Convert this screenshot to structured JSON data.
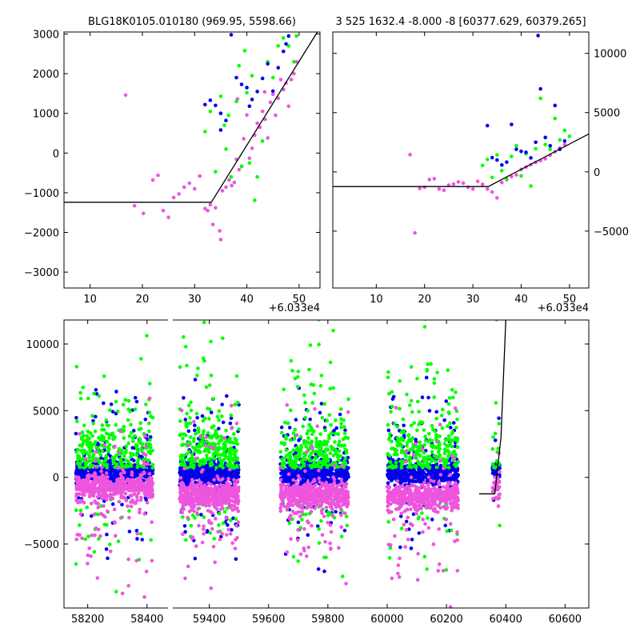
{
  "colors": {
    "green": "#00ff00",
    "blue": "#0000ee",
    "pink": "#ee55dd",
    "model": "#000000"
  },
  "chart_data": [
    {
      "id": "panel-top-left",
      "type": "scatter",
      "title": "BLG18K0105.010180 (969.95, 5598.66)",
      "x_offset_label": "+6.033e4",
      "xlim": [
        5,
        54
      ],
      "ylim": [
        -3400,
        3050
      ],
      "xticks": [
        10,
        20,
        30,
        40,
        50
      ],
      "yticks": [
        -3000,
        -2000,
        -1000,
        0,
        1000,
        2000,
        3000
      ],
      "ytick_side": "left",
      "model_line": [
        [
          5,
          -1240
        ],
        [
          33.2,
          -1240
        ],
        [
          53.5,
          3050
        ]
      ],
      "series": [
        {
          "color": "pink",
          "points": [
            [
              16.8,
              1460
            ],
            [
              18.5,
              -1330
            ],
            [
              20.2,
              -1520
            ],
            [
              22,
              -680
            ],
            [
              23,
              -560
            ],
            [
              24,
              -1450
            ],
            [
              25,
              -1620
            ],
            [
              26,
              -1120
            ],
            [
              27,
              -1030
            ],
            [
              28,
              -860
            ],
            [
              29,
              -760
            ],
            [
              30,
              -900
            ],
            [
              31,
              -580
            ],
            [
              32,
              -1400
            ],
            [
              32.5,
              -1450
            ],
            [
              33,
              -1300
            ],
            [
              33.5,
              -1800
            ],
            [
              34,
              -1380
            ],
            [
              34.8,
              -1960
            ],
            [
              35,
              -2180
            ],
            [
              35.3,
              -950
            ],
            [
              36,
              -860
            ],
            [
              36.6,
              -680
            ],
            [
              37.1,
              -820
            ],
            [
              37.6,
              -740
            ],
            [
              38,
              -160
            ],
            [
              38.5,
              -420
            ],
            [
              39,
              -330
            ],
            [
              39.4,
              360
            ],
            [
              40,
              960
            ],
            [
              40.5,
              -130
            ],
            [
              41,
              120
            ],
            [
              41.5,
              450
            ],
            [
              42,
              750
            ],
            [
              42.5,
              650
            ],
            [
              43,
              1050
            ],
            [
              43.5,
              850
            ],
            [
              44,
              380
            ],
            [
              44.5,
              1280
            ],
            [
              45,
              1480
            ],
            [
              45.5,
              950
            ],
            [
              46,
              1380
            ],
            [
              46.5,
              1850
            ],
            [
              47,
              1600
            ],
            [
              47.5,
              1760
            ],
            [
              48,
              1180
            ],
            [
              48.5,
              1850
            ],
            [
              49,
              2000
            ],
            [
              49.5,
              2300
            ],
            [
              43.4,
              1540
            ],
            [
              38.2,
              1360
            ]
          ]
        },
        {
          "color": "green",
          "points": [
            [
              32,
              540
            ],
            [
              33,
              1050
            ],
            [
              34,
              -470
            ],
            [
              35,
              1430
            ],
            [
              36,
              100
            ],
            [
              36.5,
              950
            ],
            [
              37,
              -600
            ],
            [
              38,
              1300
            ],
            [
              38.5,
              2200
            ],
            [
              39,
              -340
            ],
            [
              40,
              1520
            ],
            [
              40.5,
              -250
            ],
            [
              41,
              1950
            ],
            [
              41.5,
              -1190
            ],
            [
              42,
              -600
            ],
            [
              43,
              300
            ],
            [
              44,
              2300
            ],
            [
              45,
              1900
            ],
            [
              46,
              2700
            ],
            [
              47,
              2900
            ],
            [
              48,
              2700
            ],
            [
              49,
              2300
            ],
            [
              49.5,
              2950
            ],
            [
              39.6,
              2580
            ],
            [
              35.7,
              700
            ]
          ]
        },
        {
          "color": "blue",
          "points": [
            [
              32,
              1220
            ],
            [
              33,
              1330
            ],
            [
              34,
              1200
            ],
            [
              35,
              1000
            ],
            [
              35,
              580
            ],
            [
              36,
              820
            ],
            [
              37,
              2980
            ],
            [
              38,
              1900
            ],
            [
              39,
              1730
            ],
            [
              40,
              1650
            ],
            [
              40.5,
              1180
            ],
            [
              41,
              1350
            ],
            [
              42,
              1550
            ],
            [
              43,
              1880
            ],
            [
              44,
              2250
            ],
            [
              45,
              1560
            ],
            [
              46,
              2150
            ],
            [
              47,
              2560
            ],
            [
              47.5,
              2750
            ],
            [
              48,
              2950
            ]
          ]
        }
      ]
    },
    {
      "id": "panel-top-right",
      "type": "scatter",
      "title": "3 525 1632.4 -8.000 -8 [60377.629, 60379.265]",
      "x_offset_label": "+6.033e4",
      "xlim": [
        1,
        54
      ],
      "ylim": [
        -9800,
        11800
      ],
      "xticks": [
        10,
        20,
        30,
        40,
        50
      ],
      "yticks": [
        -5000,
        0,
        5000,
        10000
      ],
      "ytick_side": "right",
      "model_line": [
        [
          1,
          -1240
        ],
        [
          33.2,
          -1240
        ],
        [
          54,
          3200
        ]
      ],
      "series": [
        {
          "color": "pink",
          "points": [
            [
              17,
              1450
            ],
            [
              18,
              -5150
            ],
            [
              19,
              -1400
            ],
            [
              20,
              -1300
            ],
            [
              21,
              -650
            ],
            [
              22,
              -580
            ],
            [
              23,
              -1450
            ],
            [
              24,
              -1550
            ],
            [
              25,
              -1120
            ],
            [
              26,
              -1030
            ],
            [
              27,
              -850
            ],
            [
              28,
              -950
            ],
            [
              29,
              -1300
            ],
            [
              30,
              -1450
            ],
            [
              31,
              -800
            ],
            [
              32,
              -1050
            ],
            [
              33,
              -1450
            ],
            [
              34,
              -1700
            ],
            [
              35,
              -2200
            ],
            [
              36,
              -900
            ],
            [
              37,
              -650
            ],
            [
              38,
              -400
            ],
            [
              39,
              -250
            ],
            [
              40,
              200
            ],
            [
              41,
              400
            ],
            [
              42,
              600
            ],
            [
              43,
              800
            ],
            [
              44,
              950
            ],
            [
              45,
              1100
            ],
            [
              46,
              1400
            ],
            [
              47,
              1700
            ],
            [
              48,
              2000
            ],
            [
              49,
              2300
            ]
          ]
        },
        {
          "color": "green",
          "points": [
            [
              32,
              540
            ],
            [
              33,
              1050
            ],
            [
              34,
              -470
            ],
            [
              35,
              1430
            ],
            [
              36,
              100
            ],
            [
              37,
              -600
            ],
            [
              38,
              1300
            ],
            [
              39,
              2200
            ],
            [
              40,
              -340
            ],
            [
              41,
              1520
            ],
            [
              42,
              -1190
            ],
            [
              43,
              1950
            ],
            [
              44,
              6200
            ],
            [
              45,
              2300
            ],
            [
              46,
              1900
            ],
            [
              47,
              4500
            ],
            [
              48,
              2700
            ],
            [
              49,
              3500
            ],
            [
              50,
              3000
            ]
          ]
        },
        {
          "color": "blue",
          "points": [
            [
              33,
              3900
            ],
            [
              34,
              1200
            ],
            [
              35,
              1000
            ],
            [
              36,
              580
            ],
            [
              37,
              820
            ],
            [
              38,
              4000
            ],
            [
              39,
              1900
            ],
            [
              40,
              1730
            ],
            [
              41,
              1650
            ],
            [
              42,
              1180
            ],
            [
              43,
              2500
            ],
            [
              44,
              7000
            ],
            [
              45,
              2900
            ],
            [
              46,
              2200
            ],
            [
              47,
              5600
            ],
            [
              48,
              1900
            ],
            [
              49,
              2600
            ],
            [
              43.5,
              11500
            ]
          ]
        }
      ]
    },
    {
      "id": "panel-bottom",
      "type": "scatter",
      "title": "",
      "x_offset_label": "",
      "xlim": [
        58120,
        60680
      ],
      "ylim": [
        -9800,
        11800
      ],
      "xticks": [
        58200,
        58400,
        59400,
        59600,
        59800,
        60000,
        60200,
        60400,
        60600
      ],
      "yticks": [
        -5000,
        0,
        5000,
        10000
      ],
      "ytick_side": "left",
      "axis_break": [
        58430,
        59250
      ],
      "model_line": [
        [
          60310,
          -1240
        ],
        [
          60363,
          -1240
        ],
        [
          60384,
          3050
        ],
        [
          60400,
          11800
        ]
      ],
      "groups": [
        {
          "range": [
            58160,
            58420
          ],
          "pink_center": -700
        },
        {
          "range": [
            59300,
            59500
          ],
          "pink_center": -1350
        },
        {
          "range": [
            59640,
            59870
          ],
          "pink_center": -1350
        },
        {
          "range": [
            60000,
            60240
          ],
          "pink_center": -1450
        },
        {
          "range": [
            60355,
            60380
          ],
          "pink_center": -900
        }
      ]
    }
  ]
}
